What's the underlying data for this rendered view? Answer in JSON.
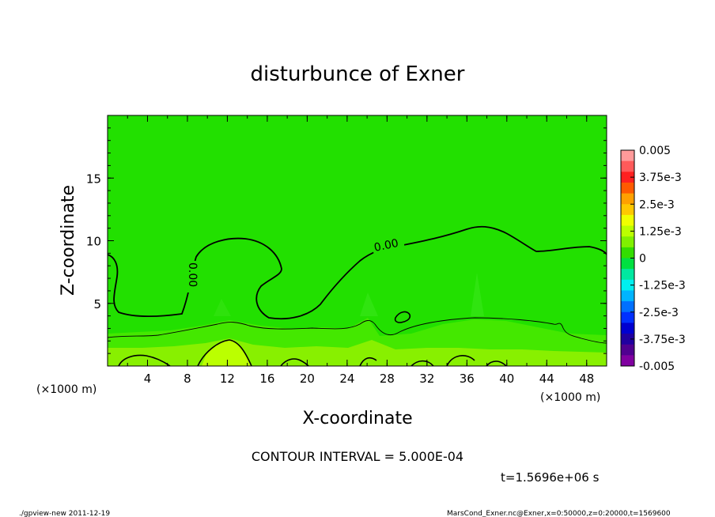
{
  "chart_data": {
    "type": "heatmap",
    "title": "disturbunce of Exner",
    "xlabel": "X-coordinate",
    "ylabel": "Z-coordinate",
    "x_unit": "(×1000 m)",
    "x_unit_right": "(×1000 m)",
    "xlim": [
      0,
      50
    ],
    "ylim": [
      0,
      20
    ],
    "x_ticks": [
      4,
      8,
      12,
      16,
      20,
      24,
      28,
      32,
      36,
      40,
      44,
      48
    ],
    "y_ticks": [
      5,
      10,
      15
    ],
    "colorbar": {
      "labels": [
        "0.005",
        "3.75e-3",
        "2.5e-3",
        "1.25e-3",
        "0",
        "-1.25e-3",
        "-2.5e-3",
        "-3.75e-3",
        "-0.005"
      ],
      "colors": [
        "#ff9a9a",
        "#ff5a5a",
        "#ff2020",
        "#ff5a00",
        "#ffa000",
        "#ffc800",
        "#f0ff00",
        "#bbff00",
        "#80f000",
        "#33dd00",
        "#00e040",
        "#00e8a0",
        "#00f0f0",
        "#00b4ff",
        "#0070ff",
        "#0030ff",
        "#0000d0",
        "#2000a0",
        "#500090",
        "#8000a0"
      ]
    },
    "contour_label": "0.00",
    "contour_label_2": "0.00",
    "contour_interval": "CONTOUR INTERVAL = 5.000E-04",
    "time_label": "t=1.5696e+06 s"
  },
  "footer": {
    "left": "./gpview-new  2011-12-19",
    "right": "MarsCond_Exner.nc@Exner,x=0:50000,z=0:20000,t=1569600"
  }
}
